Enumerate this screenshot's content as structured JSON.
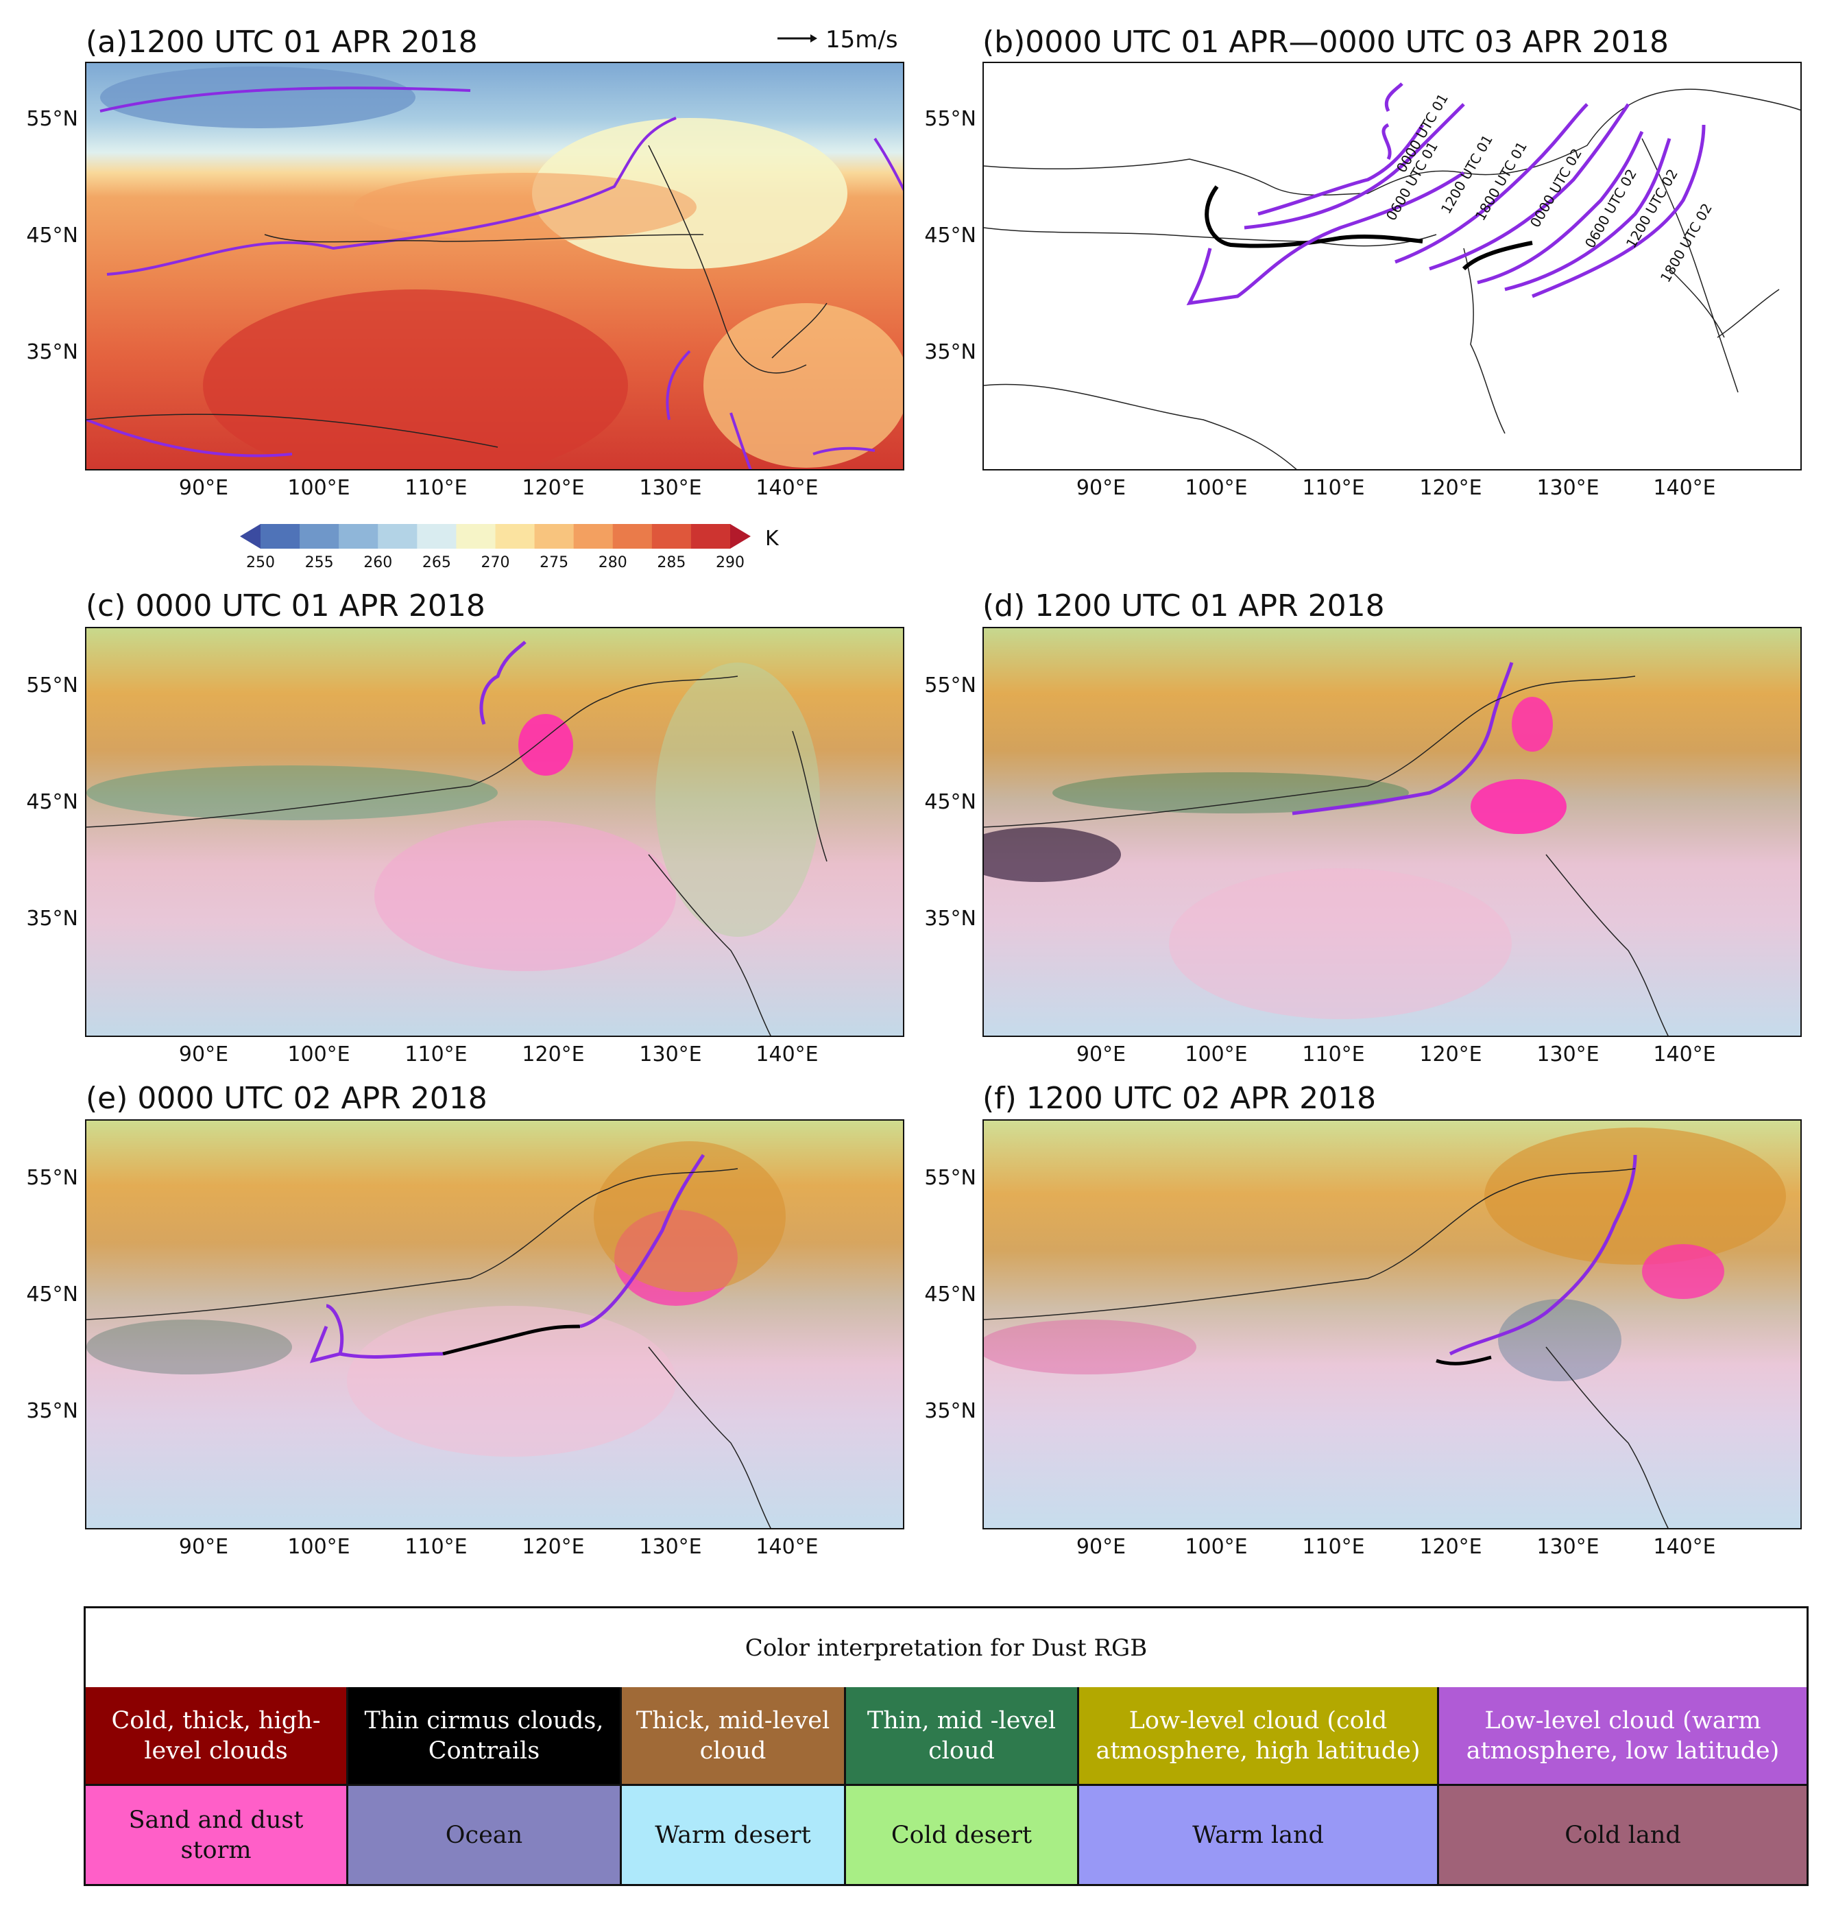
{
  "panels": {
    "a": {
      "title": "(a)1200 UTC 01 APR 2018",
      "wind_ref": "15m/s"
    },
    "b": {
      "title": "(b)0000 UTC 01 APR—0000 UTC 03 APR 2018",
      "contours": [
        "0000 UTC 01",
        "0600 UTC 01",
        "1200 UTC 01",
        "1800 UTC 01",
        "0000 UTC 02",
        "0600 UTC 02",
        "1200 UTC 02",
        "1800 UTC 02"
      ]
    },
    "c": {
      "title": "(c) 0000 UTC 01 APR 2018"
    },
    "d": {
      "title": "(d) 1200 UTC 01 APR 2018"
    },
    "e": {
      "title": "(e) 0000 UTC 02 APR 2018"
    },
    "f": {
      "title": "(f) 1200 UTC 02 APR 2018"
    }
  },
  "axes": {
    "lat_ticks": [
      "55°N",
      "45°N",
      "35°N"
    ],
    "lon_ticks": [
      "90°E",
      "100°E",
      "110°E",
      "120°E",
      "130°E",
      "140°E"
    ]
  },
  "colorbar": {
    "unit": "K",
    "labels": [
      "250",
      "255",
      "260",
      "265",
      "270",
      "275",
      "280",
      "285",
      "290"
    ],
    "colors": [
      "#3b4ba0",
      "#4f73b8",
      "#6f97c9",
      "#8fb6d9",
      "#b3d3e6",
      "#d9ecf0",
      "#f6f4c7",
      "#fbe3a0",
      "#f8c47e",
      "#f3a060",
      "#ea7b4a",
      "#df573b",
      "#cd3430",
      "#b31a2b"
    ]
  },
  "legend": {
    "title": "Color interpretation for Dust RGB",
    "rows": [
      [
        {
          "label": "Cold, thick, high-level clouds",
          "color": "#8b0000",
          "text_color": "#ffffff"
        },
        {
          "label": "Thin cirmus clouds, Contrails",
          "color": "#000000",
          "text_color": "#ffffff"
        },
        {
          "label": "Thick, mid-level cloud",
          "color": "#a06a37",
          "text_color": "#ffffff"
        },
        {
          "label": "Thin, mid -level cloud",
          "color": "#2e7a4d",
          "text_color": "#ffffff"
        },
        {
          "label": "Low-level cloud (cold atmosphere, high latitude)",
          "color": "#b3a800",
          "text_color": "#ffffff"
        },
        {
          "label": "Low-level cloud (warm atmosphere, low latitude)",
          "color": "#b05bd6",
          "text_color": "#ffffff"
        }
      ],
      [
        {
          "label": "Sand and dust storm",
          "color": "#ff5fc8",
          "text_color": "#111111"
        },
        {
          "label": "Ocean",
          "color": "#8482bf",
          "text_color": "#111111"
        },
        {
          "label": "Warm desert",
          "color": "#aee9fb",
          "text_color": "#111111"
        },
        {
          "label": "Cold desert",
          "color": "#a8ee85",
          "text_color": "#111111"
        },
        {
          "label": "Warm land",
          "color": "#9898f6",
          "text_color": "#111111"
        },
        {
          "label": "Cold land",
          "color": "#a06278",
          "text_color": "#111111"
        }
      ]
    ]
  }
}
